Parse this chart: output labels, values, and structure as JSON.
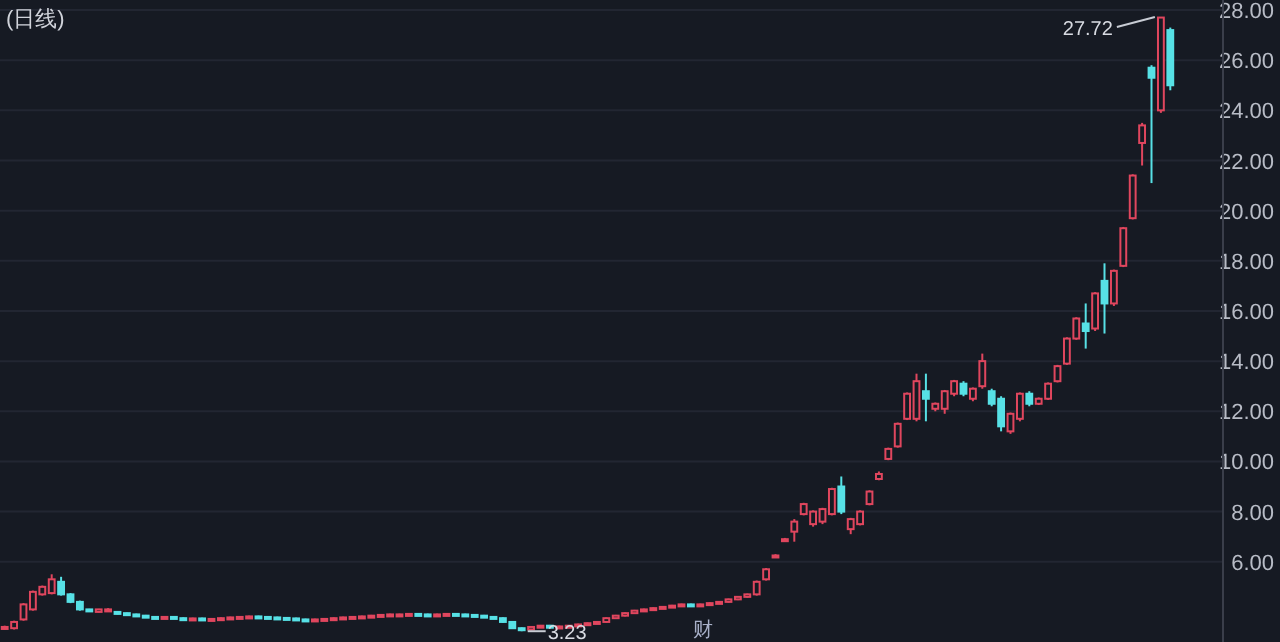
{
  "chart_data": {
    "type": "candlestick",
    "title": "(日线)",
    "categories": [
      null,
      null,
      null,
      null,
      null,
      null,
      null,
      null,
      null,
      null,
      null,
      null,
      null,
      null,
      null,
      null,
      null,
      null,
      null,
      null,
      null,
      null,
      null,
      null,
      null,
      null,
      null,
      null,
      null,
      null,
      null,
      null,
      null,
      null,
      null,
      null,
      null,
      null,
      null,
      null,
      null,
      null,
      null,
      null,
      null,
      null,
      null,
      null,
      null,
      null,
      null,
      null,
      null,
      null,
      null,
      null,
      null,
      null,
      null,
      null,
      null,
      null,
      null,
      null,
      null,
      null,
      null,
      null,
      null,
      null,
      null,
      null,
      null,
      null,
      null,
      null,
      null,
      null,
      null,
      null,
      null,
      null,
      null,
      null,
      null,
      null,
      null,
      null,
      null,
      null,
      null,
      null,
      null,
      null,
      null,
      null,
      null,
      null,
      null,
      null,
      null,
      null,
      null,
      null,
      null,
      null,
      null,
      null,
      null,
      null,
      null,
      null,
      null,
      null,
      null,
      null,
      null,
      null,
      null,
      null,
      null,
      null,
      null,
      null,
      null
    ],
    "ohlc": [
      [
        3.35,
        3.45,
        3.3,
        3.4
      ],
      [
        3.35,
        3.65,
        3.3,
        3.6
      ],
      [
        3.7,
        4.35,
        3.65,
        4.3
      ],
      [
        4.1,
        4.85,
        4.05,
        4.8
      ],
      [
        4.7,
        5.05,
        4.65,
        5.0
      ],
      [
        4.75,
        5.5,
        4.7,
        5.3
      ],
      [
        5.2,
        5.4,
        4.65,
        4.7
      ],
      [
        4.7,
        4.75,
        4.35,
        4.4
      ],
      [
        4.4,
        4.45,
        4.05,
        4.1
      ],
      [
        4.1,
        4.12,
        4.0,
        4.05
      ],
      [
        4.0,
        4.12,
        3.98,
        4.1
      ],
      [
        4.05,
        4.15,
        4.0,
        4.1
      ],
      [
        4.0,
        4.02,
        3.9,
        3.95
      ],
      [
        3.95,
        3.97,
        3.85,
        3.9
      ],
      [
        3.9,
        3.93,
        3.82,
        3.85
      ],
      [
        3.85,
        3.88,
        3.77,
        3.8
      ],
      [
        3.8,
        3.83,
        3.75,
        3.78
      ],
      [
        3.78,
        3.83,
        3.75,
        3.8
      ],
      [
        3.8,
        3.83,
        3.72,
        3.75
      ],
      [
        3.75,
        3.78,
        3.69,
        3.72
      ],
      [
        3.72,
        3.77,
        3.69,
        3.74
      ],
      [
        3.74,
        3.77,
        3.67,
        3.7
      ],
      [
        3.7,
        3.75,
        3.67,
        3.72
      ],
      [
        3.72,
        3.78,
        3.69,
        3.75
      ],
      [
        3.75,
        3.81,
        3.72,
        3.78
      ],
      [
        3.78,
        3.83,
        3.75,
        3.8
      ],
      [
        3.8,
        3.85,
        3.77,
        3.82
      ],
      [
        3.82,
        3.85,
        3.77,
        3.8
      ],
      [
        3.8,
        3.83,
        3.75,
        3.78
      ],
      [
        3.78,
        3.81,
        3.73,
        3.76
      ],
      [
        3.76,
        3.79,
        3.71,
        3.74
      ],
      [
        3.74,
        3.77,
        3.67,
        3.7
      ],
      [
        3.7,
        3.73,
        3.65,
        3.68
      ],
      [
        3.68,
        3.73,
        3.65,
        3.7
      ],
      [
        3.7,
        3.75,
        3.67,
        3.72
      ],
      [
        3.72,
        3.78,
        3.69,
        3.75
      ],
      [
        3.75,
        3.81,
        3.72,
        3.78
      ],
      [
        3.78,
        3.83,
        3.75,
        3.8
      ],
      [
        3.8,
        3.85,
        3.77,
        3.82
      ],
      [
        3.82,
        3.88,
        3.79,
        3.85
      ],
      [
        3.85,
        3.91,
        3.82,
        3.88
      ],
      [
        3.88,
        3.93,
        3.85,
        3.9
      ],
      [
        3.9,
        3.93,
        3.87,
        3.9
      ],
      [
        3.9,
        3.95,
        3.87,
        3.92
      ],
      [
        3.92,
        3.95,
        3.87,
        3.9
      ],
      [
        3.9,
        3.93,
        3.85,
        3.88
      ],
      [
        3.88,
        3.93,
        3.85,
        3.9
      ],
      [
        3.9,
        3.95,
        3.87,
        3.92
      ],
      [
        3.92,
        3.95,
        3.87,
        3.9
      ],
      [
        3.9,
        3.93,
        3.85,
        3.88
      ],
      [
        3.88,
        3.91,
        3.82,
        3.85
      ],
      [
        3.85,
        3.88,
        3.77,
        3.8
      ],
      [
        3.8,
        3.83,
        3.72,
        3.75
      ],
      [
        3.75,
        3.78,
        3.57,
        3.6
      ],
      [
        3.6,
        3.63,
        3.32,
        3.35
      ],
      [
        3.35,
        3.38,
        3.23,
        3.3
      ],
      [
        3.3,
        3.43,
        3.27,
        3.4
      ],
      [
        3.4,
        3.48,
        3.37,
        3.45
      ],
      [
        3.45,
        3.48,
        3.37,
        3.4
      ],
      [
        3.4,
        3.45,
        3.37,
        3.42
      ],
      [
        3.42,
        3.48,
        3.39,
        3.45
      ],
      [
        3.45,
        3.53,
        3.42,
        3.5
      ],
      [
        3.5,
        3.58,
        3.47,
        3.55
      ],
      [
        3.55,
        3.63,
        3.52,
        3.6
      ],
      [
        3.6,
        3.78,
        3.57,
        3.75
      ],
      [
        3.75,
        3.88,
        3.72,
        3.85
      ],
      [
        3.85,
        3.98,
        3.82,
        3.95
      ],
      [
        3.95,
        4.08,
        3.92,
        4.05
      ],
      [
        4.05,
        4.13,
        4.02,
        4.1
      ],
      [
        4.1,
        4.18,
        4.07,
        4.15
      ],
      [
        4.15,
        4.23,
        4.12,
        4.2
      ],
      [
        4.2,
        4.28,
        4.17,
        4.25
      ],
      [
        4.25,
        4.33,
        4.22,
        4.3
      ],
      [
        4.3,
        4.33,
        4.25,
        4.28
      ],
      [
        4.28,
        4.33,
        4.25,
        4.3
      ],
      [
        4.3,
        4.38,
        4.27,
        4.35
      ],
      [
        4.35,
        4.43,
        4.32,
        4.4
      ],
      [
        4.4,
        4.53,
        4.37,
        4.5
      ],
      [
        4.5,
        4.63,
        4.47,
        4.6
      ],
      [
        4.6,
        4.73,
        4.57,
        4.7
      ],
      [
        4.7,
        5.25,
        4.65,
        5.2
      ],
      [
        5.3,
        5.75,
        5.25,
        5.7
      ],
      [
        6.2,
        6.3,
        6.15,
        6.25
      ],
      [
        6.85,
        6.95,
        6.8,
        6.9
      ],
      [
        7.2,
        7.7,
        6.8,
        7.6
      ],
      [
        7.9,
        8.35,
        7.85,
        8.3
      ],
      [
        7.5,
        8.05,
        7.4,
        8.0
      ],
      [
        7.6,
        8.15,
        7.5,
        8.1
      ],
      [
        7.9,
        8.95,
        7.85,
        8.9
      ],
      [
        9.0,
        9.4,
        7.9,
        8.0
      ],
      [
        7.3,
        7.75,
        7.1,
        7.7
      ],
      [
        7.5,
        8.05,
        7.45,
        8.0
      ],
      [
        8.3,
        8.85,
        8.25,
        8.8
      ],
      [
        9.3,
        9.6,
        9.25,
        9.5
      ],
      [
        10.1,
        10.55,
        10.05,
        10.5
      ],
      [
        10.6,
        11.55,
        10.55,
        11.5
      ],
      [
        11.7,
        12.75,
        11.65,
        12.7
      ],
      [
        11.7,
        13.5,
        11.6,
        13.2
      ],
      [
        12.8,
        13.5,
        11.6,
        12.5
      ],
      [
        12.1,
        12.35,
        12.0,
        12.3
      ],
      [
        12.1,
        12.85,
        11.9,
        12.8
      ],
      [
        12.7,
        13.25,
        12.6,
        13.2
      ],
      [
        13.1,
        13.2,
        12.6,
        12.7
      ],
      [
        12.5,
        12.95,
        12.4,
        12.9
      ],
      [
        13.0,
        14.3,
        12.9,
        14.0
      ],
      [
        12.8,
        12.9,
        12.2,
        12.3
      ],
      [
        12.5,
        12.6,
        11.2,
        11.4
      ],
      [
        11.2,
        11.95,
        11.1,
        11.9
      ],
      [
        11.7,
        12.75,
        11.6,
        12.7
      ],
      [
        12.7,
        12.8,
        12.2,
        12.3
      ],
      [
        12.3,
        12.55,
        12.25,
        12.5
      ],
      [
        12.5,
        13.15,
        12.45,
        13.1
      ],
      [
        13.2,
        13.85,
        13.15,
        13.8
      ],
      [
        13.9,
        14.95,
        13.85,
        14.9
      ],
      [
        14.9,
        15.75,
        14.85,
        15.7
      ],
      [
        15.5,
        16.3,
        14.5,
        15.2
      ],
      [
        15.3,
        16.75,
        15.2,
        16.7
      ],
      [
        17.2,
        17.9,
        15.1,
        16.3
      ],
      [
        16.3,
        17.65,
        16.2,
        17.6
      ],
      [
        17.8,
        19.35,
        17.75,
        19.3
      ],
      [
        19.7,
        21.45,
        19.65,
        21.4
      ],
      [
        22.7,
        23.5,
        21.8,
        23.4
      ],
      [
        25.7,
        25.8,
        21.1,
        25.3
      ],
      [
        24.0,
        27.72,
        23.9,
        27.7
      ],
      [
        27.2,
        27.3,
        24.8,
        25.0
      ]
    ],
    "ylim": [
      2.8,
      28.4
    ],
    "yticks": [
      {
        "value": 6,
        "label": "6.00"
      },
      {
        "value": 8,
        "label": "8.00"
      },
      {
        "value": 10,
        "label": "10.00"
      },
      {
        "value": 12,
        "label": "12.00"
      },
      {
        "value": 14,
        "label": "14.00"
      },
      {
        "value": 16,
        "label": "16.00"
      },
      {
        "value": 18,
        "label": "18.00"
      },
      {
        "value": 20,
        "label": "20.00"
      },
      {
        "value": 22,
        "label": "22.00"
      },
      {
        "value": 24,
        "label": "24.00"
      },
      {
        "value": 26,
        "label": "26.00"
      },
      {
        "value": 28,
        "label": "28.00"
      }
    ],
    "grid": "y",
    "annotations": [
      "27.72",
      "3.23",
      "财"
    ]
  }
}
